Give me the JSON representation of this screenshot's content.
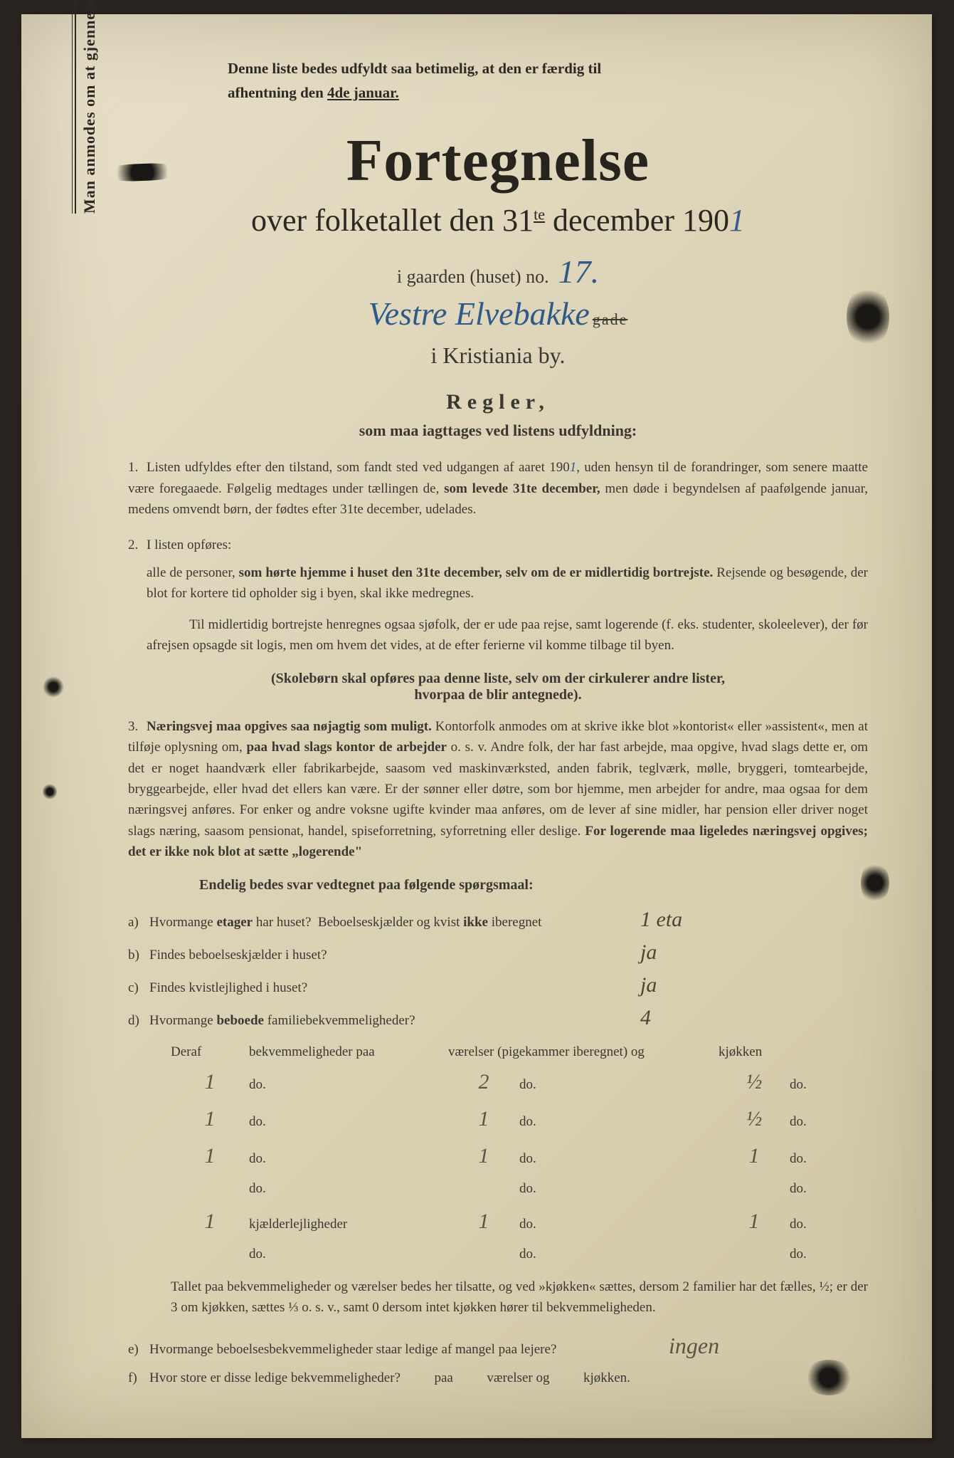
{
  "vertical_note": "Man anmodes om at gjennemlæse og nøje at befølge de paa fortegnelsen trykte overskrifter og anvisninger.",
  "top_note_line1": "Denne liste bedes udfyldt saa betimelig, at den er færdig til",
  "top_note_line2_a": "afhentning den ",
  "top_note_line2_b": "4de januar.",
  "title_main": "Fortegnelse",
  "title_sub_a": "over folketallet den 31",
  "title_sub_sup": "te",
  "title_sub_b": " december 190",
  "hand_year": "1",
  "gaarden_text": "i gaarden (huset) no.",
  "hand_house_no": "17.",
  "hand_street": "Vestre Elvebakke",
  "gade_word": "gade",
  "city_line": "i Kristiania by.",
  "regler_heading": "Regler,",
  "regler_sub": "som maa iagttages ved listens udfyldning:",
  "rule1": "Listen udfyldes efter den tilstand, som fandt sted ved udgangen af aaret 190   , uden hensyn til de forandringer, som senere maatte være foregaaede. Følgelig medtages under tællingen de, som levede 31te december, men døde i begyndelsen af paafølgende januar, medens omvendt børn, der fødtes efter 31te december, udelades.",
  "rule1_num": "1.",
  "rule2_num": "2.",
  "rule2_intro": "I listen opføres:",
  "rule2_body": "alle de personer, som hørte hjemme i huset den 31te december, selv om de er midlertidig bortrejste. Rejsende og besøgende, der blot for kortere tid opholder sig i byen, skal ikke medregnes.",
  "rule2_extra": "Til midlertidig bortrejste henregnes ogsaa sjøfolk, der er ude paa rejse, samt logerende (f. eks. studenter, skoleelever), der før afrejsen opsagde sit logis, men om hvem det vides, at de efter ferierne vil komme tilbage til byen.",
  "skoleborn_note": "(Skolebørn skal opføres paa denne liste, selv om der cirkulerer andre lister, hvorpaa de blir antegnede).",
  "rule3_num": "3.",
  "rule3_body": "Næringsvej maa opgives saa nøjagtig som muligt. Kontorfolk anmodes om at skrive ikke blot »kontorist« eller »assistent«, men at tilføje oplysning om, paa hvad slags kontor de arbejder o. s. v. Andre folk, der har fast arbejde, maa opgive, hvad slags dette er, om det er noget haandværk eller fabrikarbejde, saasom ved maskinværksted, anden fabrik, teglværk, mølle, bryggeri, tomtearbejde, bryggearbejde, eller hvad det ellers kan være. Er der sønner eller døtre, som bor hjemme, men arbejder for andre, maa ogsaa for dem næringsvej anføres. For enker og andre voksne ugifte kvinder maa anføres, om de lever af sine midler, har pension eller driver noget slags næring, saasom pensionat, handel, spiseforretning, syforretning eller deslige. For logerende maa ligeledes næringsvej opgives; det er ikke nok blot at sætte „logerende“",
  "endelig_heading": "Endelig bedes svar vedtegnet paa følgende spørgsmaal:",
  "qa": {
    "a_label": "Hvormange etager har huset?  Beboelseskjælder og kvist ikke iberegnet",
    "a_letter": "a)",
    "a_ans": "1 eta",
    "b_label": "Findes beboelseskjælder i huset?",
    "b_letter": "b)",
    "b_ans": "ja",
    "c_label": "Findes kvistlejlighed i huset?",
    "c_letter": "c)",
    "c_ans": "ja",
    "d_label": "Hvormange beboede familiebekvemmeligheder?",
    "d_letter": "d)",
    "d_ans": "4"
  },
  "table": {
    "h1": "Deraf",
    "h2": "bekvemmeligheder paa",
    "h3": "værelser (pigekammer iberegnet) og",
    "h4": "kjøkken",
    "do": "do.",
    "kjaelder": "kjælderlejligheder",
    "rows": [
      {
        "c1": "1",
        "c2": "do.",
        "c3a": "2",
        "c3b": "do.",
        "c4a": "½",
        "c4b": "do."
      },
      {
        "c1": "1",
        "c2": "do.",
        "c3a": "1",
        "c3b": "do.",
        "c4a": "½",
        "c4b": "do."
      },
      {
        "c1": "1",
        "c2": "do.",
        "c3a": "1",
        "c3b": "do.",
        "c4a": "1",
        "c4b": "do."
      },
      {
        "c1": "",
        "c2": "do.",
        "c3a": "",
        "c3b": "do.",
        "c4a": "",
        "c4b": "do."
      },
      {
        "c1": "1",
        "c2": "kjælderlejligheder",
        "c3a": "1",
        "c3b": "do.",
        "c4a": "1",
        "c4b": "do."
      },
      {
        "c1": "",
        "c2": "do.",
        "c3a": "",
        "c3b": "do.",
        "c4a": "",
        "c4b": "do."
      }
    ]
  },
  "footer_para": "Tallet paa bekvemmeligheder og værelser bedes her tilsatte, og ved »kjøkken« sættes, dersom 2 familier har det fælles, ½; er der 3 om kjøkken, sættes ⅓ o. s. v., samt 0 dersom intet kjøkken hører til bekvemmeligheden.",
  "qe_letter": "e)",
  "qe_label": "Hvormange beboelsesbekvemmeligheder staar ledige af mangel paa lejere?",
  "qe_ans": "ingen",
  "qf_letter": "f)",
  "qf_label_a": "Hvor store er disse ledige bekvemmeligheder?",
  "qf_label_b": "paa",
  "qf_label_c": "værelser og",
  "qf_label_d": "kjøkken."
}
